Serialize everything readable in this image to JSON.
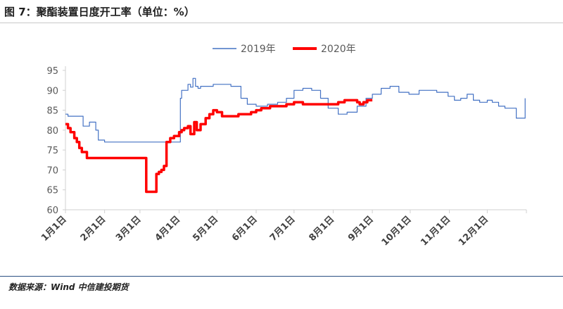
{
  "header": {
    "title": "图 7：聚酯装置日度开工率（单位：%）"
  },
  "footer": {
    "source": "数据来源：Wind  中信建投期货"
  },
  "chart_data": {
    "type": "line",
    "title": "",
    "xlabel": "",
    "ylabel": "",
    "ylim": [
      60,
      95
    ],
    "yticks": [
      60,
      65,
      70,
      75,
      80,
      85,
      90,
      95
    ],
    "grid": false,
    "legend_position": "top-center",
    "x_ticks": [
      "1月1日",
      "2月1日",
      "3月1日",
      "4月1日",
      "5月1日",
      "6月1日",
      "7月1日",
      "8月1日",
      "9月1日",
      "10月1日",
      "11月1日",
      "12月1日"
    ],
    "series": [
      {
        "name": "2019年",
        "color": "#4472c4",
        "x": [
          "1/1",
          "1/3",
          "1/14",
          "1/15",
          "1/20",
          "1/25",
          "1/27",
          "2/1",
          "2/5",
          "2/10",
          "2/20",
          "3/1",
          "3/10",
          "3/20",
          "3/30",
          "4/1",
          "4/2",
          "4/3",
          "4/6",
          "4/8",
          "4/10",
          "4/12",
          "4/14",
          "4/16",
          "4/18",
          "4/22",
          "4/28",
          "5/5",
          "5/12",
          "5/20",
          "5/25",
          "6/1",
          "6/10",
          "6/18",
          "6/25",
          "7/1",
          "7/8",
          "7/15",
          "7/22",
          "7/28",
          "8/5",
          "8/12",
          "8/20",
          "8/27",
          "9/1",
          "9/8",
          "9/15",
          "9/22",
          "9/30",
          "10/8",
          "10/15",
          "10/22",
          "10/31",
          "11/5",
          "11/10",
          "11/15",
          "11/20",
          "11/25",
          "12/1",
          "12/5",
          "12/10",
          "12/15",
          "12/20",
          "12/24",
          "12/31"
        ],
        "values": [
          84,
          83.5,
          83.5,
          81,
          82,
          80,
          77.5,
          77,
          77,
          77,
          77,
          77,
          77,
          77,
          77,
          77,
          88,
          90,
          90,
          91.5,
          90.8,
          93,
          91,
          90.5,
          91,
          91,
          91.5,
          91.5,
          91,
          88,
          86.5,
          86,
          86.5,
          87,
          88,
          90,
          90.5,
          90,
          88,
          85.5,
          84,
          84.5,
          86,
          88,
          89,
          90.5,
          91,
          89.5,
          89,
          90,
          90,
          89.5,
          88.5,
          87.5,
          88,
          89,
          87.5,
          87,
          87.5,
          87,
          86,
          85.5,
          85.5,
          83,
          88
        ]
      },
      {
        "name": "2020年",
        "color": "#ff0000",
        "x": [
          "1/1",
          "1/3",
          "1/5",
          "1/8",
          "1/10",
          "1/12",
          "1/14",
          "1/18",
          "2/1",
          "2/10",
          "2/20",
          "2/26",
          "2/27",
          "3/1",
          "3/5",
          "3/6",
          "3/8",
          "3/12",
          "3/14",
          "3/16",
          "3/18",
          "3/20",
          "3/22",
          "3/25",
          "3/28",
          "4/1",
          "4/3",
          "4/5",
          "4/8",
          "4/10",
          "4/13",
          "4/15",
          "4/18",
          "4/22",
          "4/25",
          "4/28",
          "5/1",
          "5/5",
          "5/12",
          "5/18",
          "5/25",
          "5/28",
          "6/1",
          "6/5",
          "6/12",
          "6/18",
          "6/25",
          "7/1",
          "7/8",
          "7/12",
          "7/20",
          "7/28",
          "8/5",
          "8/10",
          "8/15",
          "8/20",
          "8/22",
          "8/25",
          "8/28",
          "9/1"
        ],
        "values": [
          81.5,
          80.5,
          79.5,
          78,
          77,
          75.5,
          74.5,
          73,
          73,
          73,
          73,
          73,
          73,
          73,
          73,
          64.5,
          64.5,
          64.5,
          69,
          69.5,
          70,
          71,
          77,
          78,
          78.5,
          79.5,
          80,
          80.5,
          81,
          79,
          82,
          80,
          81.5,
          83,
          84,
          85,
          84.5,
          83.5,
          83.5,
          84,
          84,
          84.5,
          85,
          85.5,
          86,
          86,
          86.5,
          87,
          86.5,
          86.5,
          86.5,
          86.5,
          87,
          87.5,
          87.5,
          87,
          86.5,
          87,
          87.5,
          87.5
        ]
      }
    ]
  }
}
